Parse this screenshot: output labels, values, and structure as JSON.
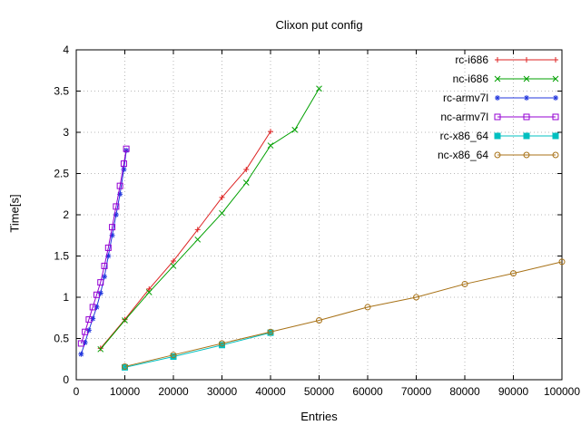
{
  "chart_data": {
    "type": "line",
    "title": "Clixon put config",
    "xlabel": "Entries",
    "ylabel": "Time[s]",
    "xlim": [
      0,
      100000
    ],
    "ylim": [
      0,
      4
    ],
    "xticks": [
      0,
      10000,
      20000,
      30000,
      40000,
      50000,
      60000,
      70000,
      80000,
      90000,
      100000
    ],
    "xtick_labels": [
      "0",
      "10000",
      "20000",
      "30000",
      "40000",
      "50000",
      "60000",
      "70000",
      "80000",
      "90000",
      "100000"
    ],
    "yticks": [
      0,
      0.5,
      1,
      1.5,
      2,
      2.5,
      3,
      3.5,
      4
    ],
    "ytick_labels": [
      "0",
      "0.5",
      "1",
      "1.5",
      "2",
      "2.5",
      "3",
      "3.5",
      "4"
    ],
    "grid": true,
    "legend_position": "top-right-inside",
    "colors": {
      "axis": "#000000",
      "grid": "#b9b9b9",
      "background": "#ffffff",
      "text": "#000000"
    },
    "series": [
      {
        "name": "rc-i686",
        "color": "#dd2222",
        "marker": "plus",
        "points": [
          [
            5000,
            0.38
          ],
          [
            10000,
            0.73
          ],
          [
            15000,
            1.1
          ],
          [
            20000,
            1.44
          ],
          [
            25000,
            1.82
          ],
          [
            30000,
            2.21
          ],
          [
            35000,
            2.55
          ],
          [
            40000,
            3.01
          ]
        ]
      },
      {
        "name": "nc-i686",
        "color": "#00a000",
        "marker": "times",
        "points": [
          [
            5000,
            0.37
          ],
          [
            10000,
            0.72
          ],
          [
            15000,
            1.06
          ],
          [
            20000,
            1.38
          ],
          [
            25000,
            1.7
          ],
          [
            30000,
            2.02
          ],
          [
            35000,
            2.39
          ],
          [
            40000,
            2.84
          ],
          [
            45000,
            3.03
          ],
          [
            50000,
            3.53
          ]
        ]
      },
      {
        "name": "rc-armv7l",
        "color": "#2236dd",
        "marker": "asterisk",
        "points": [
          [
            1000,
            0.31
          ],
          [
            1800,
            0.45
          ],
          [
            2600,
            0.6
          ],
          [
            3400,
            0.74
          ],
          [
            4200,
            0.88
          ],
          [
            5000,
            1.05
          ],
          [
            5800,
            1.25
          ],
          [
            6600,
            1.5
          ],
          [
            7400,
            1.75
          ],
          [
            8200,
            2.0
          ],
          [
            9000,
            2.25
          ],
          [
            9800,
            2.55
          ],
          [
            10300,
            2.78
          ]
        ]
      },
      {
        "name": "nc-armv7l",
        "color": "#9400d3",
        "marker": "square-open",
        "points": [
          [
            1000,
            0.44
          ],
          [
            1800,
            0.58
          ],
          [
            2600,
            0.73
          ],
          [
            3400,
            0.88
          ],
          [
            4200,
            1.03
          ],
          [
            5000,
            1.18
          ],
          [
            5800,
            1.38
          ],
          [
            6600,
            1.6
          ],
          [
            7400,
            1.85
          ],
          [
            8200,
            2.1
          ],
          [
            9000,
            2.35
          ],
          [
            9800,
            2.62
          ],
          [
            10300,
            2.8
          ]
        ]
      },
      {
        "name": "rc-x86_64",
        "color": "#00c0c0",
        "marker": "square-filled",
        "points": [
          [
            10000,
            0.15
          ],
          [
            20000,
            0.28
          ],
          [
            30000,
            0.42
          ],
          [
            40000,
            0.57
          ]
        ]
      },
      {
        "name": "nc-x86_64",
        "color": "#a87217",
        "marker": "circle-open",
        "points": [
          [
            10000,
            0.16
          ],
          [
            20000,
            0.3
          ],
          [
            30000,
            0.44
          ],
          [
            40000,
            0.58
          ],
          [
            50000,
            0.72
          ],
          [
            60000,
            0.88
          ],
          [
            70000,
            1.0
          ],
          [
            80000,
            1.16
          ],
          [
            90000,
            1.29
          ],
          [
            100000,
            1.43
          ]
        ]
      }
    ]
  }
}
